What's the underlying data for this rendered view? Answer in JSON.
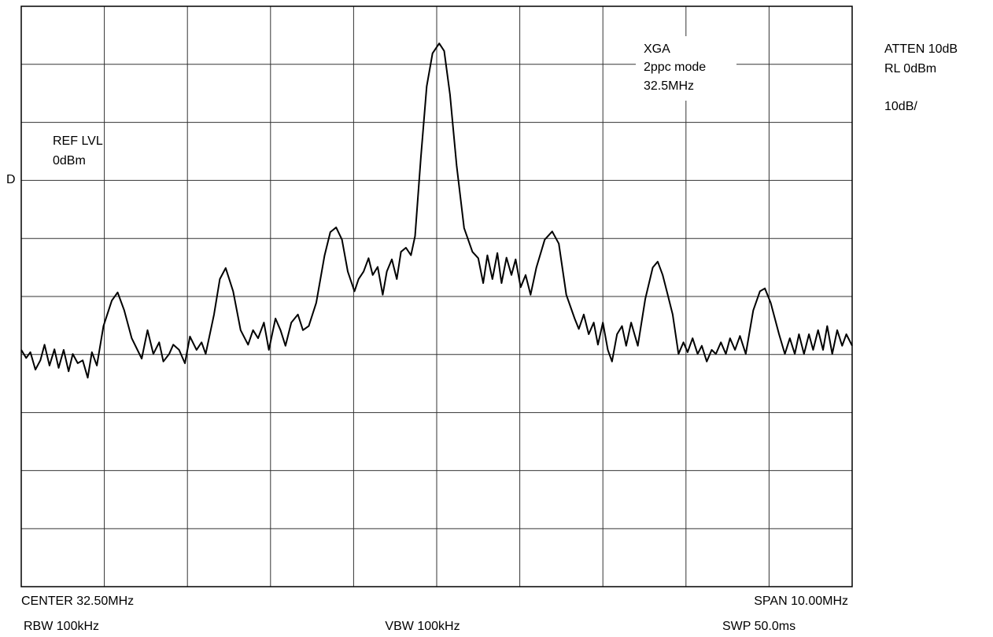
{
  "chart_data": {
    "type": "line",
    "x": [
      27.5,
      27.56,
      27.61,
      27.67,
      27.73,
      27.78,
      27.84,
      27.9,
      27.95,
      28.01,
      28.07,
      28.12,
      28.18,
      28.24,
      28.3,
      28.35,
      28.41,
      28.49,
      28.59,
      28.66,
      28.74,
      28.83,
      28.95,
      29.02,
      29.09,
      29.16,
      29.21,
      29.28,
      29.33,
      29.4,
      29.47,
      29.53,
      29.61,
      29.67,
      29.72,
      29.82,
      29.89,
      29.96,
      30.05,
      30.14,
      30.23,
      30.29,
      30.35,
      30.42,
      30.48,
      30.56,
      30.62,
      30.68,
      30.75,
      30.83,
      30.89,
      30.96,
      31.05,
      31.15,
      31.22,
      31.29,
      31.36,
      31.43,
      31.51,
      31.56,
      31.62,
      31.68,
      31.73,
      31.79,
      31.85,
      31.9,
      31.96,
      32.02,
      32.07,
      32.13,
      32.19,
      32.24,
      32.31,
      32.38,
      32.45,
      32.53,
      32.59,
      32.66,
      32.74,
      32.83,
      32.93,
      33.0,
      33.06,
      33.11,
      33.17,
      33.23,
      33.28,
      33.34,
      33.4,
      33.45,
      33.51,
      33.57,
      33.63,
      33.7,
      33.8,
      33.89,
      33.97,
      34.06,
      34.16,
      34.21,
      34.27,
      34.33,
      34.39,
      34.44,
      34.5,
      34.56,
      34.61,
      34.67,
      34.73,
      34.78,
      34.84,
      34.92,
      35.01,
      35.1,
      35.16,
      35.22,
      35.28,
      35.34,
      35.41,
      35.47,
      35.52,
      35.58,
      35.64,
      35.69,
      35.75,
      35.81,
      35.86,
      35.92,
      35.98,
      36.03,
      36.09,
      36.15,
      36.22,
      36.31,
      36.39,
      36.45,
      36.52,
      36.62,
      36.69,
      36.75,
      36.81,
      36.86,
      36.92,
      36.98,
      37.03,
      37.09,
      37.15,
      37.2,
      37.26,
      37.32,
      37.38,
      37.43,
      37.5
    ],
    "values": [
      -59.2,
      -60.6,
      -59.6,
      -62.6,
      -61.0,
      -58.3,
      -61.9,
      -59.1,
      -62.3,
      -59.2,
      -62.9,
      -59.9,
      -61.5,
      -61.0,
      -64.0,
      -59.6,
      -61.9,
      -55.1,
      -50.7,
      -49.3,
      -52.4,
      -57.2,
      -60.7,
      -55.8,
      -59.9,
      -57.9,
      -61.2,
      -59.9,
      -58.3,
      -59.2,
      -61.5,
      -56.9,
      -59.2,
      -57.9,
      -59.9,
      -53.1,
      -47.0,
      -45.1,
      -49.1,
      -55.8,
      -58.3,
      -55.8,
      -57.2,
      -54.5,
      -59.2,
      -53.8,
      -55.8,
      -58.5,
      -54.5,
      -53.1,
      -55.8,
      -55.1,
      -51.1,
      -43.0,
      -38.9,
      -38.1,
      -40.2,
      -45.7,
      -49.1,
      -47.0,
      -45.7,
      -43.4,
      -46.3,
      -44.9,
      -49.7,
      -45.7,
      -43.6,
      -47.0,
      -42.3,
      -41.6,
      -42.9,
      -39.6,
      -26.0,
      -13.8,
      -8.1,
      -6.4,
      -7.7,
      -15.2,
      -27.4,
      -38.2,
      -42.3,
      -43.4,
      -47.7,
      -42.9,
      -47.0,
      -42.5,
      -47.7,
      -43.3,
      -46.3,
      -43.6,
      -48.4,
      -46.3,
      -49.7,
      -45.0,
      -40.2,
      -38.8,
      -40.9,
      -49.7,
      -53.8,
      -55.6,
      -53.1,
      -56.5,
      -54.5,
      -58.3,
      -54.5,
      -59.2,
      -61.2,
      -56.5,
      -55.1,
      -58.5,
      -54.5,
      -58.5,
      -50.4,
      -45.0,
      -44.0,
      -46.3,
      -49.7,
      -53.1,
      -59.9,
      -57.9,
      -59.6,
      -57.2,
      -59.9,
      -58.5,
      -61.2,
      -59.2,
      -59.9,
      -57.9,
      -59.9,
      -57.2,
      -59.2,
      -56.8,
      -59.9,
      -52.4,
      -49.1,
      -48.6,
      -51.1,
      -56.5,
      -59.9,
      -57.2,
      -59.9,
      -56.5,
      -59.9,
      -56.5,
      -59.2,
      -55.8,
      -59.2,
      -55.1,
      -59.9,
      -55.8,
      -58.5,
      -56.5,
      -58.5
    ],
    "color": "#000000",
    "xlim": [
      27.5,
      37.5
    ],
    "ylim": [
      -100,
      0
    ],
    "xticks": [
      27.5,
      28.5,
      29.5,
      30.5,
      31.5,
      32.5,
      33.5,
      34.5,
      35.5,
      36.5,
      37.5
    ],
    "yticks": [
      -100,
      -90,
      -80,
      -70,
      -60,
      -50,
      -40,
      -30,
      -20,
      -10,
      0
    ],
    "grid": true,
    "annotations": {
      "signal": [
        "XGA",
        "2ppc mode",
        "32.5MHz"
      ],
      "ref_level": [
        "REF LVL",
        "0dBm"
      ],
      "marker": "D",
      "settings": [
        "ATTEN 10dB",
        "RL 0dBm",
        "10dB/"
      ],
      "footer": {
        "center": "CENTER 32.50MHz",
        "span": "SPAN 10.00MHz",
        "rbw": "RBW 100kHz",
        "vbw": "VBW 100kHz",
        "swp": "SWP 50.0ms"
      }
    }
  }
}
